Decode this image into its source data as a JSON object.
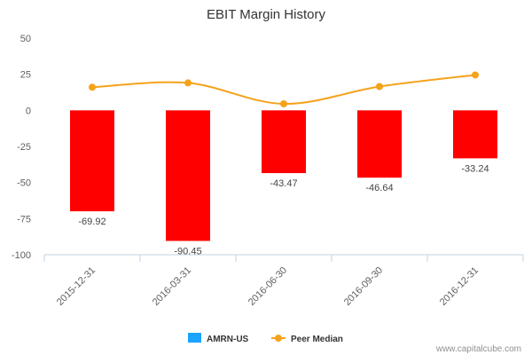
{
  "chart_data": {
    "type": "bar",
    "title": "EBIT Margin History",
    "categories": [
      "2015-12-31",
      "2016-03-31",
      "2016-06-30",
      "2016-09-30",
      "2016-12-31"
    ],
    "ylim": [
      -100,
      50
    ],
    "yticks": [
      "50",
      "25",
      "0",
      "-25",
      "-50",
      "-75",
      "-100"
    ],
    "grid": false,
    "legend_position": "bottom-center",
    "series": [
      {
        "name": "AMRN-US",
        "kind": "bar",
        "bar_color": "#ff0000",
        "legend_color": "#1aa3ff",
        "values": [
          -69.92,
          -90.45,
          -43.47,
          -46.64,
          -33.24
        ],
        "labels": [
          "-69.92",
          "-90.45",
          "-43.47",
          "-46.64",
          "-33.24"
        ]
      },
      {
        "name": "Peer Median",
        "kind": "line",
        "color": "#f5a21b",
        "values": [
          16,
          19,
          4.5,
          16.5,
          24.5
        ]
      }
    ]
  },
  "credit": "www.capitalcube.com"
}
